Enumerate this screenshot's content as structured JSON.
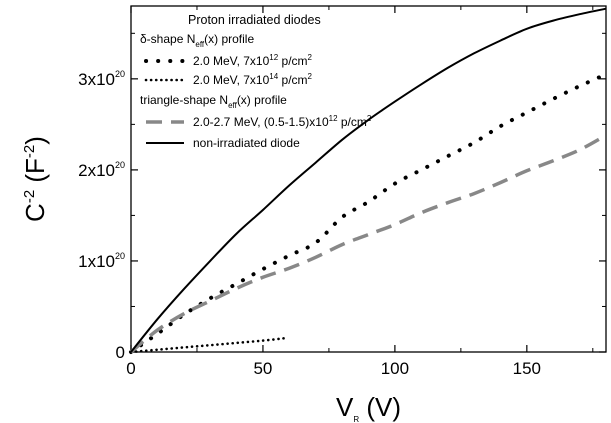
{
  "chart_data": {
    "type": "line",
    "xlabel": {
      "main": "V",
      "sub": "R",
      "rest": " (V)"
    },
    "ylabel": {
      "main": "C",
      "sup": "-2",
      "rest": " (F",
      "sup2": "-2",
      "end": ")"
    },
    "xlim": [
      0,
      180
    ],
    "ylim": [
      0,
      3.8e+20
    ],
    "x_ticks": [
      {
        "value": 0,
        "label": "0"
      },
      {
        "value": 50,
        "label": "50"
      },
      {
        "value": 100,
        "label": "100"
      },
      {
        "value": 150,
        "label": "150"
      }
    ],
    "y_ticks": [
      {
        "value": 0,
        "base": "0",
        "exp": ""
      },
      {
        "value": 1e+20,
        "base": "1x10",
        "exp": "20"
      },
      {
        "value": 2e+20,
        "base": "2x10",
        "exp": "20"
      },
      {
        "value": 3e+20,
        "base": "3x10",
        "exp": "20"
      }
    ],
    "grid": false,
    "legend_position": "top-left",
    "legend_title": "Proton irradiated diodes",
    "legend_groups": [
      {
        "name": "delta",
        "header": {
          "pre": "δ-shape N",
          "sub": "eff",
          "post": "(x) profile"
        }
      },
      {
        "name": "triangle",
        "header": {
          "pre": "triangle-shape N",
          "sub": "eff",
          "post": "(x) profile"
        }
      }
    ],
    "series": [
      {
        "name": "2.0 MeV, 7x10^12 p/cm^2",
        "legend": {
          "pre": "2.0 MeV, 7x10",
          "sup": "12",
          "post": " p/cm",
          "sup2": "2"
        },
        "group": "delta",
        "style": "dotted-thick",
        "color": "#000000",
        "x": [
          0,
          10,
          20,
          30,
          40,
          50,
          60,
          70,
          80,
          90,
          100,
          110,
          120,
          130,
          140,
          150,
          160,
          170,
          180
        ],
        "y": [
          0,
          2e+19,
          4.1e+19,
          5.9e+19,
          7.5e+19,
          9.1e+19,
          1.06e+20,
          1.2e+20,
          1.48e+20,
          1.65e+20,
          1.85e+20,
          2e+20,
          2.15e+20,
          2.3e+20,
          2.48e+20,
          2.63e+20,
          2.78e+20,
          2.92e+20,
          3.05e+20
        ]
      },
      {
        "name": "2.0 MeV, 7x10^14 p/cm^2",
        "legend": {
          "pre": "2.0 MeV, 7x10",
          "sup": "14",
          "post": " p/cm",
          "sup2": "2"
        },
        "group": "delta",
        "style": "dotted-fine",
        "color": "#000000",
        "x": [
          0,
          10,
          20,
          30,
          40,
          50,
          58
        ],
        "y": [
          0,
          2.5e+18,
          5e+18,
          7.5e+18,
          1e+19,
          1.25e+19,
          1.5e+19
        ]
      },
      {
        "name": "2.0-2.7 MeV, (0.5-1.5)x10^12 p/cm^2",
        "legend": {
          "pre": "2.0-2.7 MeV, (0.5-1.5)x10",
          "sup": "12",
          "post": " p/cm",
          "sup2": "2"
        },
        "group": "triangle",
        "style": "dashed",
        "color": "#888888",
        "x": [
          0,
          10,
          20,
          30,
          40,
          50,
          60,
          70,
          80,
          90,
          100,
          110,
          120,
          130,
          140,
          150,
          160,
          170,
          180
        ],
        "y": [
          0,
          2.4e+19,
          4.2e+19,
          5.6e+19,
          7e+19,
          8.2e+19,
          9.2e+19,
          1.04e+20,
          1.18e+20,
          1.29e+20,
          1.4e+20,
          1.53e+20,
          1.64e+20,
          1.74e+20,
          1.86e+20,
          1.99e+20,
          2.1e+20,
          2.22e+20,
          2.38e+20
        ]
      },
      {
        "name": "non-irradiated diode",
        "legend": {
          "pre": "non-irradiated diode",
          "sup": "",
          "post": "",
          "sup2": ""
        },
        "group": "",
        "style": "solid",
        "color": "#000000",
        "x": [
          0,
          10,
          20,
          30,
          40,
          50,
          60,
          70,
          80,
          90,
          100,
          110,
          120,
          130,
          140,
          150,
          160,
          170,
          180
        ],
        "y": [
          0,
          3.6e+19,
          6.9e+19,
          1e+20,
          1.3e+20,
          1.56e+20,
          1.83e+20,
          2.08e+20,
          2.33e+20,
          2.55e+20,
          2.75e+20,
          2.94e+20,
          3.12e+20,
          3.28e+20,
          3.42e+20,
          3.55e+20,
          3.64e+20,
          3.71e+20,
          3.77e+20
        ]
      }
    ]
  }
}
